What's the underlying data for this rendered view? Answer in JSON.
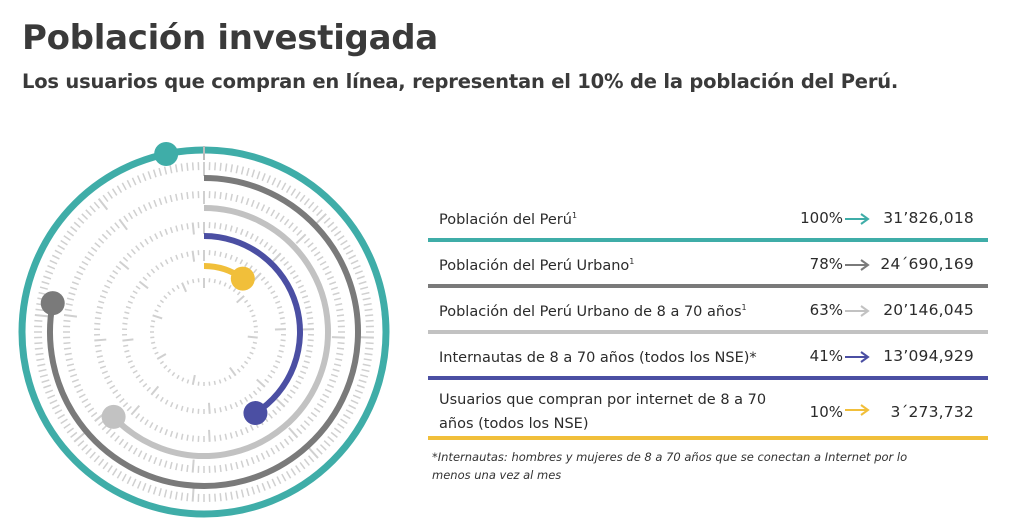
{
  "header": {
    "title": "Población investigada",
    "subtitle": "Los usuarios que compran en línea, representan el 10% de la población del Perú."
  },
  "colors": {
    "teal": "#3fada8",
    "dark_gray": "#7a7a7a",
    "light_gray": "#c2c2c2",
    "indigo": "#4b4fa3",
    "yellow": "#f1bf3a",
    "tick": "#d0d0d0"
  },
  "chart_data": {
    "type": "radial-bar",
    "title": "",
    "series": [
      {
        "name": "Población del Perú",
        "sup": "1",
        "percent": 100,
        "value": "31’826,018",
        "color": "#3fada8"
      },
      {
        "name": "Población del Perú Urbano",
        "sup": "1",
        "percent": 78,
        "value": "24´690,169",
        "color": "#7a7a7a"
      },
      {
        "name": "Población del Perú Urbano de 8 a 70 años",
        "sup": "1",
        "percent": 63,
        "value": "20’146,045",
        "color": "#c2c2c2"
      },
      {
        "name": "Internautas de 8 a 70 años (todos los NSE)*",
        "sup": "",
        "percent": 41,
        "value": "13’094,929",
        "color": "#4b4fa3"
      },
      {
        "name": "Usuarios que compran por internet de 8 a 70 años (todos los NSE)",
        "sup": "",
        "percent": 10,
        "value": "3´273,732",
        "color": "#f1bf3a"
      }
    ]
  },
  "table": {
    "rows": [
      {
        "label": "Población del Perú",
        "sup": "1",
        "pct": "100%",
        "value": "31’826,018",
        "color": "#3fada8"
      },
      {
        "label": "Población del Perú Urbano",
        "sup": "1",
        "pct": "78%",
        "value": "24´690,169",
        "color": "#7a7a7a"
      },
      {
        "label": "Población del Perú Urbano de 8 a 70 años",
        "sup": "1",
        "pct": "63%",
        "value": "20’146,045",
        "color": "#c2c2c2"
      },
      {
        "label": "Internautas de 8 a 70 años (todos los NSE)*",
        "sup": "",
        "pct": "41%",
        "value": "13’094,929",
        "color": "#4b4fa3"
      },
      {
        "label": "Usuarios que compran por internet de 8 a 70 años (todos los NSE)",
        "sup": "",
        "pct": "10%",
        "value": "3´273,732",
        "color": "#f1bf3a"
      }
    ]
  },
  "footnote": "*Internautas: hombres y mujeres de 8 a 70 años que se conectan a Internet por lo menos una vez al mes"
}
